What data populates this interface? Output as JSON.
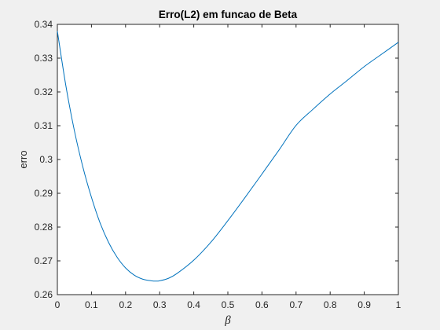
{
  "chart_data": {
    "type": "line",
    "title": "Erro(L2) em funcao de Beta",
    "xlabel": "β",
    "ylabel": "erro",
    "xlim": [
      0,
      1
    ],
    "ylim": [
      0.26,
      0.34
    ],
    "xticks": [
      "0",
      "0.1",
      "0.2",
      "0.3",
      "0.4",
      "0.5",
      "0.6",
      "0.7",
      "0.8",
      "0.9",
      "1"
    ],
    "yticks": [
      "0.26",
      "0.27",
      "0.28",
      "0.29",
      "0.3",
      "0.31",
      "0.32",
      "0.33",
      "0.34"
    ],
    "grid": false,
    "line_color": "#0072bd",
    "series": [
      {
        "x": [
          0,
          0.025,
          0.05,
          0.075,
          0.1,
          0.125,
          0.15,
          0.175,
          0.2,
          0.225,
          0.25,
          0.275,
          0.29,
          0.3,
          0.325,
          0.35,
          0.4,
          0.45,
          0.5,
          0.55,
          0.6,
          0.65,
          0.7,
          0.75,
          0.8,
          0.85,
          0.9,
          0.95,
          1.0
        ],
        "y": [
          0.338,
          0.3218,
          0.3085,
          0.2977,
          0.2888,
          0.2813,
          0.2755,
          0.2711,
          0.2679,
          0.2658,
          0.2646,
          0.2641,
          0.264,
          0.2641,
          0.2648,
          0.2662,
          0.2702,
          0.2755,
          0.2819,
          0.2887,
          0.2957,
          0.3028,
          0.3101,
          0.3149,
          0.3194,
          0.3234,
          0.3275,
          0.3311,
          0.3347
        ]
      }
    ]
  }
}
